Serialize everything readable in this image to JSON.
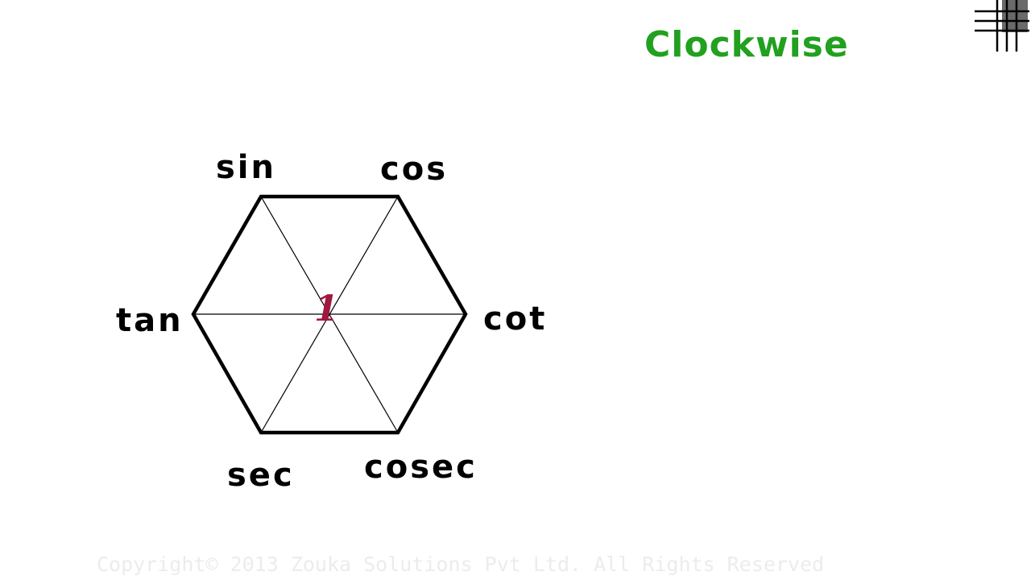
{
  "heading": "Clockwise",
  "diagram": {
    "center_value": "1",
    "vertex_labels": {
      "top_left": "sin",
      "top_right": "cos",
      "right": "cot",
      "bottom_right": "cosec",
      "bottom_left": "sec",
      "left": "tan"
    }
  },
  "footer": {
    "copyright": "Copyright© 2013 Zouka Solutions Pvt Ltd. All Rights Reserved"
  },
  "colors": {
    "heading": "#22a020",
    "center_value": "#a01840",
    "hexagon": "#000000"
  },
  "icons": {
    "logo": "grid-logo-icon"
  }
}
